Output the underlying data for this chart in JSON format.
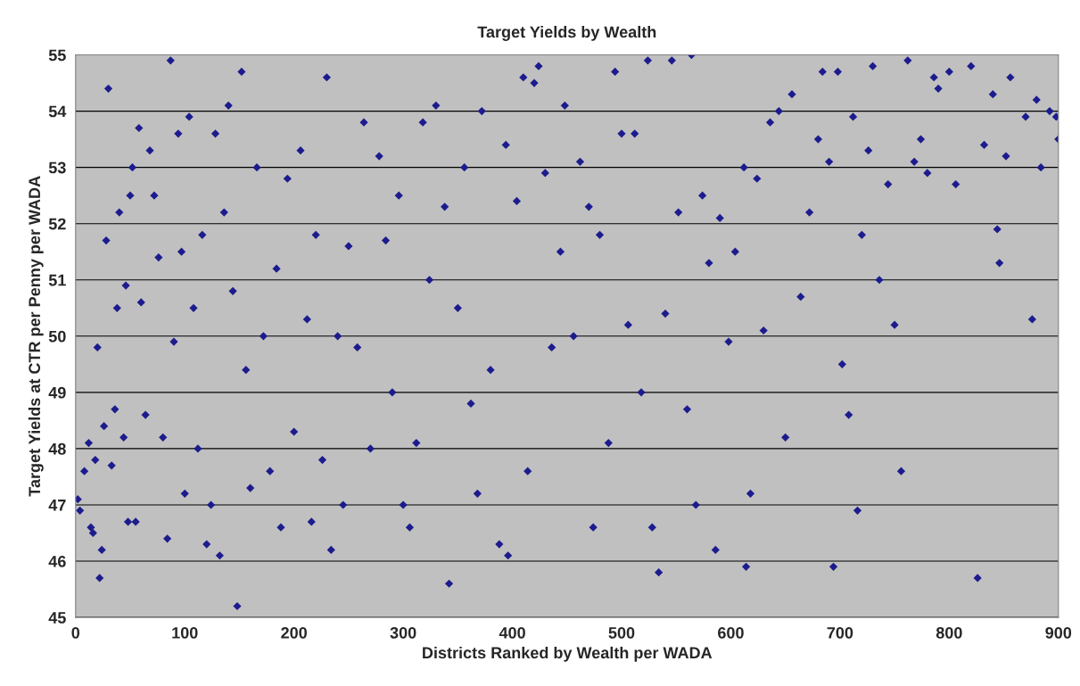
{
  "chart_data": {
    "type": "scatter",
    "title": "Target Yields by Wealth",
    "xlabel": "Districts Ranked by Wealth per WADA",
    "ylabel": "Target Yields at CTR per Penny per WADA",
    "xlim": [
      0,
      900
    ],
    "xticks": [
      0,
      100,
      200,
      300,
      400,
      500,
      600,
      700,
      800,
      900
    ],
    "ylim": [
      45,
      55
    ],
    "yticks": [
      45,
      46,
      47,
      48,
      49,
      50,
      51,
      52,
      53,
      54,
      55
    ],
    "grid": "y",
    "marker": "diamond",
    "legend": false,
    "series": [
      {
        "color": "#1c1c8e",
        "x": [
          2,
          4,
          8,
          12,
          14,
          16,
          18,
          20,
          22,
          24,
          26,
          28,
          30,
          33,
          36,
          38,
          40,
          44,
          46,
          48,
          50,
          52,
          55,
          58,
          60,
          64,
          68,
          72,
          76,
          80,
          84,
          87,
          90,
          94,
          97,
          100,
          104,
          108,
          112,
          116,
          120,
          124,
          128,
          132,
          136,
          140,
          144,
          148,
          152,
          156,
          160,
          166,
          172,
          178,
          184,
          188,
          194,
          200,
          206,
          212,
          216,
          220,
          226,
          230,
          234,
          240,
          245,
          250,
          258,
          264,
          270,
          278,
          284,
          290,
          296,
          300,
          306,
          312,
          318,
          324,
          330,
          338,
          342,
          350,
          356,
          362,
          368,
          372,
          380,
          388,
          394,
          396,
          404,
          410,
          414,
          420,
          424,
          430,
          436,
          444,
          448,
          456,
          462,
          470,
          474,
          480,
          488,
          494,
          500,
          506,
          512,
          518,
          524,
          528,
          534,
          540,
          546,
          552,
          560,
          564,
          568,
          574,
          580,
          586,
          590,
          598,
          604,
          612,
          614,
          618,
          624,
          630,
          636,
          644,
          650,
          656,
          664,
          672,
          680,
          684,
          690,
          694,
          698,
          702,
          708,
          712,
          716,
          720,
          726,
          730,
          736,
          744,
          750,
          756,
          762,
          768,
          774,
          780,
          786,
          790,
          800,
          806,
          820,
          826,
          832,
          840,
          844,
          846,
          852,
          856,
          870,
          876,
          880,
          884,
          892,
          898,
          900
        ],
        "values": [
          47.1,
          46.9,
          47.6,
          48.1,
          46.6,
          46.5,
          47.8,
          49.8,
          45.7,
          46.2,
          48.4,
          51.7,
          54.4,
          47.7,
          48.7,
          50.5,
          52.2,
          48.2,
          50.9,
          46.7,
          52.5,
          53.0,
          46.7,
          53.7,
          50.6,
          48.6,
          53.3,
          52.5,
          51.4,
          48.2,
          46.4,
          54.9,
          49.9,
          53.6,
          51.5,
          47.2,
          53.9,
          50.5,
          48.0,
          51.8,
          46.3,
          47.0,
          53.6,
          46.1,
          52.2,
          54.1,
          50.8,
          45.2,
          54.7,
          49.4,
          47.3,
          53.0,
          50.0,
          47.6,
          51.2,
          46.6,
          52.8,
          48.3,
          53.3,
          50.3,
          46.7,
          51.8,
          47.8,
          54.6,
          46.2,
          50.0,
          47.0,
          51.6,
          49.8,
          53.8,
          48.0,
          53.2,
          51.7,
          49.0,
          52.5,
          47.0,
          46.6,
          48.1,
          53.8,
          51.0,
          54.1,
          52.3,
          45.6,
          50.5,
          53.0,
          48.8,
          47.2,
          54.0,
          49.4,
          46.3,
          53.4,
          46.1,
          52.4,
          54.6,
          47.6,
          54.5,
          54.8,
          52.9,
          49.8,
          51.5,
          54.1,
          50.0,
          53.1,
          52.3,
          46.6,
          51.8,
          48.1,
          54.7,
          53.6,
          50.2,
          53.6,
          49.0,
          54.9,
          46.6,
          45.8,
          50.4,
          54.9,
          52.2,
          48.7,
          55.0,
          47.0,
          52.5,
          51.3,
          46.2,
          52.1,
          49.9,
          51.5,
          53.0,
          45.9,
          47.2,
          52.8,
          50.1,
          53.8,
          54.0,
          48.2,
          54.3,
          50.7,
          52.2,
          53.5,
          54.7,
          53.1,
          45.9,
          54.7,
          49.5,
          48.6,
          53.9,
          46.9,
          51.8,
          53.3,
          54.8,
          51.0,
          52.7,
          50.2,
          47.6,
          54.9,
          53.1,
          53.5,
          52.9,
          54.6,
          54.4,
          54.7,
          52.7,
          54.8,
          45.7,
          53.4,
          54.3,
          51.9,
          51.3,
          53.2,
          54.6,
          53.9,
          50.3,
          54.2,
          53.0,
          54.0,
          53.9,
          53.5
        ]
      }
    ]
  }
}
